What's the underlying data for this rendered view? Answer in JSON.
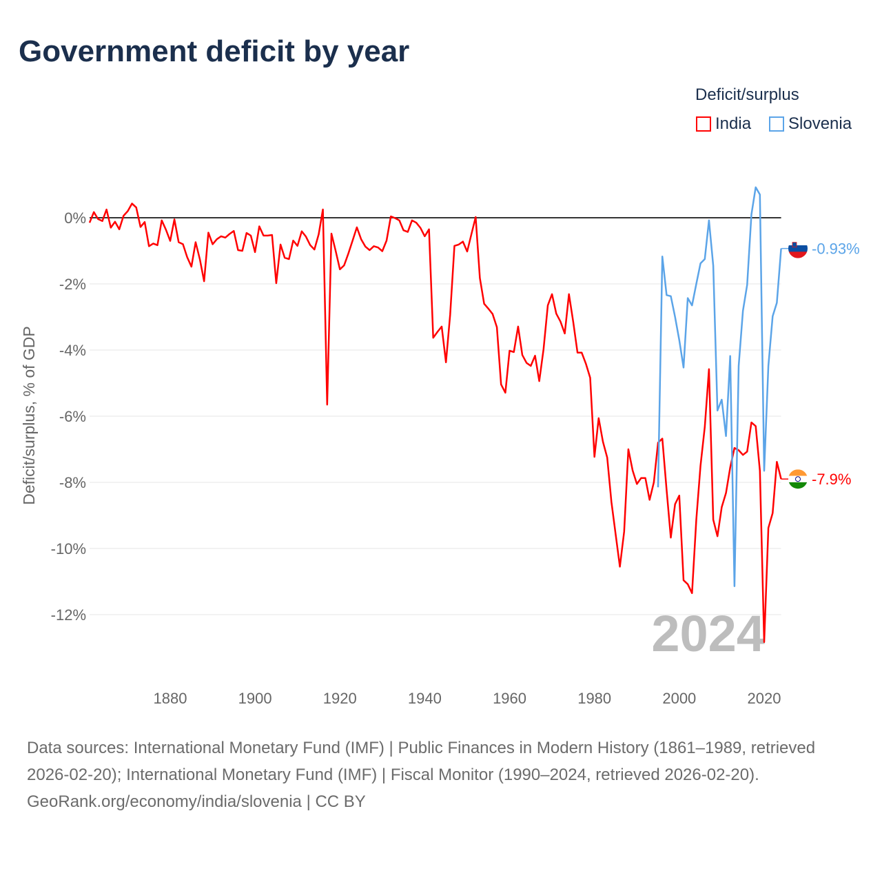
{
  "title": "Government deficit by year",
  "legend": {
    "title": "Deficit/surplus",
    "items": [
      {
        "label": "India",
        "color": "#ff0000"
      },
      {
        "label": "Slovenia",
        "color": "#5ba4e8"
      }
    ]
  },
  "footer": {
    "sources": "Data sources: International Monetary Fund (IMF) | Public Finances in Modern History (1861–1989, retrieved 2026-02-20); International Monetary Fund (IMF) | Fiscal Monitor (1990–2024, retrieved 2026-02-20).",
    "credit": "GeoRank.org/economy/india/slovenia | CC BY"
  },
  "chart_data": {
    "type": "line",
    "title": "Government deficit by year",
    "xlabel": "",
    "ylabel": "Deficit/surplus, % of GDP",
    "xlim": [
      1861,
      2024
    ],
    "ylim": [
      -13.5,
      1.5
    ],
    "x_ticks": [
      1880,
      1900,
      1920,
      1940,
      1960,
      1980,
      2000,
      2020
    ],
    "y_ticks": [
      0,
      -2,
      -4,
      -6,
      -8,
      -10,
      -12
    ],
    "y_tick_labels": [
      "0%",
      "-2%",
      "-4%",
      "-6%",
      "-8%",
      "-10%",
      "-12%"
    ],
    "year_watermark": "2024",
    "grid": true,
    "legend_position": "top-right",
    "series": [
      {
        "name": "India",
        "color": "#ff0000",
        "start_year": 1861,
        "end_label": "-7.9%",
        "values": [
          -0.15,
          0.17,
          -0.04,
          -0.1,
          0.25,
          -0.3,
          -0.12,
          -0.35,
          0.06,
          0.2,
          0.43,
          0.31,
          -0.28,
          -0.13,
          -0.86,
          -0.78,
          -0.83,
          -0.08,
          -0.36,
          -0.7,
          -0.05,
          -0.74,
          -0.8,
          -1.19,
          -1.48,
          -0.74,
          -1.26,
          -1.92,
          -0.45,
          -0.8,
          -0.65,
          -0.56,
          -0.6,
          -0.49,
          -0.4,
          -0.98,
          -1.0,
          -0.46,
          -0.54,
          -1.04,
          -0.26,
          -0.54,
          -0.54,
          -0.52,
          -1.98,
          -0.81,
          -1.21,
          -1.25,
          -0.69,
          -0.85,
          -0.41,
          -0.57,
          -0.83,
          -0.96,
          -0.5,
          0.25,
          -5.65,
          -0.48,
          -1.0,
          -1.56,
          -1.44,
          -1.08,
          -0.69,
          -0.29,
          -0.65,
          -0.87,
          -0.98,
          -0.86,
          -0.9,
          -1.01,
          -0.69,
          0.04,
          -0.01,
          -0.08,
          -0.38,
          -0.43,
          -0.08,
          -0.15,
          -0.31,
          -0.56,
          -0.35,
          -3.63,
          -3.45,
          -3.29,
          -4.37,
          -2.93,
          -0.85,
          -0.81,
          -0.72,
          -1.02,
          -0.5,
          0.02,
          -1.82,
          -2.6,
          -2.75,
          -2.91,
          -3.31,
          -5.04,
          -5.29,
          -4.02,
          -4.06,
          -3.29,
          -4.15,
          -4.39,
          -4.48,
          -4.17,
          -4.94,
          -3.98,
          -2.65,
          -2.31,
          -2.9,
          -3.14,
          -3.5,
          -2.31,
          -3.15,
          -4.08,
          -4.08,
          -4.42,
          -4.84,
          -7.23,
          -6.06,
          -6.77,
          -7.25,
          -8.59,
          -9.58,
          -10.55,
          -9.49,
          -7.0,
          -7.64,
          -8.05,
          -7.87,
          -7.87,
          -8.53,
          -8.0,
          -6.8,
          -6.68,
          -8.23,
          -9.67,
          -8.66,
          -8.4,
          -10.96,
          -11.08,
          -11.35,
          -9.13,
          -7.5,
          -6.33,
          -4.58,
          -9.13,
          -9.63,
          -8.75,
          -8.32,
          -7.55,
          -6.96,
          -7.03,
          -7.17,
          -7.07,
          -6.19,
          -6.3,
          -7.65,
          -12.83,
          -9.38,
          -8.93,
          -7.38,
          -7.9
        ]
      },
      {
        "name": "Slovenia",
        "color": "#5ba4e8",
        "start_year": 1995,
        "end_label": "-0.93%",
        "values": [
          -8.15,
          -1.17,
          -2.34,
          -2.37,
          -3.0,
          -3.7,
          -4.53,
          -2.43,
          -2.65,
          -2.0,
          -1.38,
          -1.25,
          -0.08,
          -1.45,
          -5.83,
          -5.5,
          -6.6,
          -4.18,
          -11.14,
          -4.48,
          -2.81,
          -2.03,
          0.1,
          0.92,
          0.7,
          -7.65,
          -4.48,
          -2.98,
          -2.57,
          -0.93
        ]
      }
    ]
  }
}
